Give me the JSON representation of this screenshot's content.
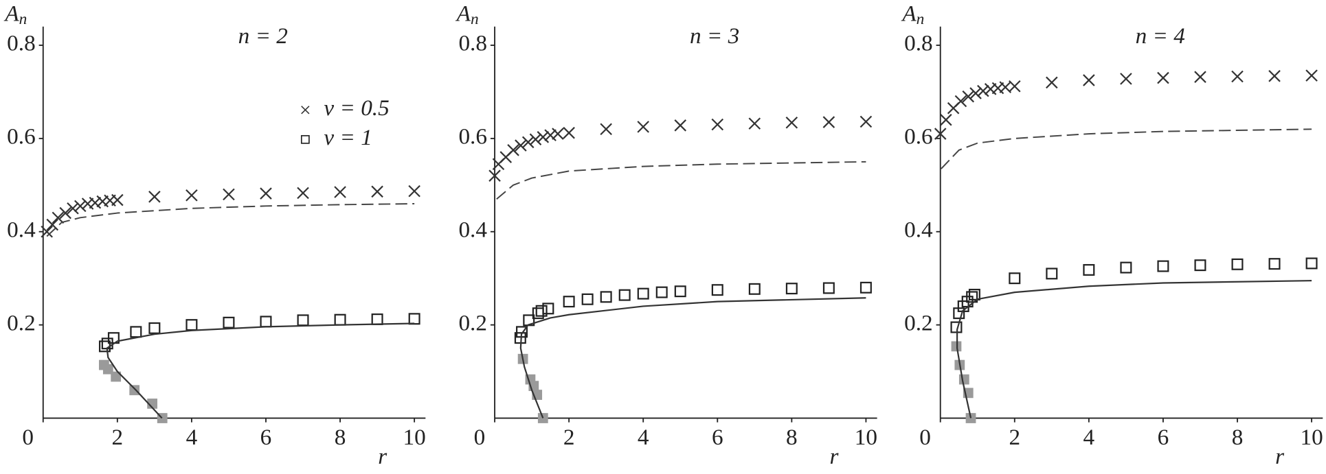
{
  "chart_data": [
    {
      "type": "scatter-line",
      "title": "n = 2",
      "ylabel": "A",
      "ylabel_sub": "n",
      "xlabel": "r",
      "xlim": [
        0,
        10.3
      ],
      "ylim": [
        0,
        0.84
      ],
      "xticks": [
        0,
        2,
        4,
        6,
        8,
        10
      ],
      "yticks": [
        0.2,
        0.4,
        0.6,
        0.8
      ],
      "series": [
        {
          "name": "v = 0.5",
          "marker": "cross",
          "color": "#333333",
          "x": [
            0.1,
            0.25,
            0.4,
            0.6,
            0.8,
            1.0,
            1.2,
            1.4,
            1.6,
            1.8,
            2,
            3,
            4,
            5,
            6,
            7,
            8,
            9,
            10
          ],
          "values": [
            0.4,
            0.415,
            0.43,
            0.44,
            0.45,
            0.455,
            0.46,
            0.462,
            0.465,
            0.467,
            0.468,
            0.475,
            0.478,
            0.48,
            0.482,
            0.483,
            0.485,
            0.486,
            0.487
          ]
        },
        {
          "name": "v = 1",
          "marker": "square",
          "color": "#222222",
          "x": [
            1.66,
            1.73,
            1.9,
            2.5,
            3,
            4,
            5,
            6,
            7,
            8,
            9,
            10
          ],
          "values": [
            0.154,
            0.16,
            0.172,
            0.185,
            0.193,
            0.2,
            0.205,
            0.207,
            0.21,
            0.211,
            0.212,
            0.213
          ]
        },
        {
          "marker": "filled-square",
          "color": "#9a9a9a",
          "x": [
            1.64,
            1.75,
            1.96,
            2.46,
            2.94,
            3.21
          ],
          "values": [
            0.114,
            0.105,
            0.089,
            0.06,
            0.031,
            0.0
          ]
        },
        {
          "marker": "dashed",
          "color": "#444444",
          "x": [
            0.1,
            0.5,
            1,
            2,
            4,
            6,
            8,
            10
          ],
          "values": [
            0.39,
            0.42,
            0.43,
            0.44,
            0.45,
            0.455,
            0.458,
            0.46
          ]
        },
        {
          "marker": "solid",
          "color": "#333333",
          "x": [
            3.2,
            2.5,
            2,
            1.75,
            1.72,
            2,
            3,
            4,
            6,
            8,
            10
          ],
          "values": [
            0.0,
            0.06,
            0.1,
            0.13,
            0.15,
            0.165,
            0.18,
            0.188,
            0.196,
            0.2,
            0.203
          ]
        }
      ]
    },
    {
      "type": "scatter-line",
      "title": "n = 3",
      "ylabel": "A",
      "ylabel_sub": "n",
      "xlabel": "r",
      "xlim": [
        0,
        10.3
      ],
      "ylim": [
        0,
        0.84
      ],
      "xticks": [
        0,
        2,
        4,
        6,
        8,
        10
      ],
      "yticks": [
        0.2,
        0.4,
        0.6,
        0.8
      ],
      "series": [
        {
          "marker": "cross",
          "color": "#333333",
          "x": [
            0,
            0.1,
            0.3,
            0.5,
            0.7,
            0.9,
            1.1,
            1.3,
            1.5,
            1.7,
            2,
            3,
            4,
            5,
            6,
            7,
            8,
            9,
            10
          ],
          "values": [
            0.52,
            0.545,
            0.56,
            0.575,
            0.585,
            0.592,
            0.598,
            0.603,
            0.607,
            0.61,
            0.612,
            0.62,
            0.625,
            0.628,
            0.63,
            0.632,
            0.634,
            0.635,
            0.636
          ]
        },
        {
          "marker": "square",
          "color": "#222222",
          "x": [
            0.69,
            0.73,
            0.92,
            1.17,
            1.26,
            1.44,
            2,
            2.5,
            3,
            3.5,
            4,
            4.5,
            5,
            6,
            7,
            8,
            9,
            10
          ],
          "values": [
            0.172,
            0.185,
            0.21,
            0.225,
            0.23,
            0.235,
            0.25,
            0.255,
            0.26,
            0.264,
            0.267,
            0.27,
            0.272,
            0.275,
            0.277,
            0.278,
            0.279,
            0.28
          ]
        },
        {
          "marker": "filled-square",
          "color": "#9a9a9a",
          "x": [
            0.76,
            0.96,
            1.05,
            1.14,
            1.3
          ],
          "values": [
            0.127,
            0.083,
            0.069,
            0.05,
            0.0
          ]
        },
        {
          "marker": "dashed",
          "color": "#444444",
          "x": [
            0.05,
            0.5,
            1,
            2,
            4,
            6,
            10
          ],
          "values": [
            0.47,
            0.5,
            0.515,
            0.53,
            0.54,
            0.545,
            0.55
          ]
        },
        {
          "marker": "solid",
          "color": "#333333",
          "x": [
            1.3,
            1.0,
            0.8,
            0.7,
            0.72,
            0.9,
            1.5,
            2,
            4,
            6,
            10
          ],
          "values": [
            0.0,
            0.06,
            0.11,
            0.15,
            0.18,
            0.2,
            0.215,
            0.222,
            0.24,
            0.25,
            0.258
          ]
        }
      ]
    },
    {
      "type": "scatter-line",
      "title": "n = 4",
      "ylabel": "A",
      "ylabel_sub": "n",
      "xlabel": "r",
      "xlim": [
        0,
        10.3
      ],
      "ylim": [
        0,
        0.84
      ],
      "xticks": [
        0,
        2,
        4,
        6,
        8,
        10
      ],
      "yticks": [
        0.2,
        0.4,
        0.6,
        0.8
      ],
      "series": [
        {
          "marker": "cross",
          "color": "#333333",
          "x": [
            0,
            0.15,
            0.35,
            0.55,
            0.75,
            0.95,
            1.15,
            1.35,
            1.55,
            1.75,
            2,
            3,
            4,
            5,
            6,
            7,
            8,
            9,
            10
          ],
          "values": [
            0.61,
            0.64,
            0.665,
            0.68,
            0.69,
            0.697,
            0.702,
            0.706,
            0.708,
            0.71,
            0.712,
            0.72,
            0.725,
            0.728,
            0.73,
            0.732,
            0.733,
            0.734,
            0.735
          ]
        },
        {
          "marker": "square",
          "color": "#222222",
          "x": [
            0.43,
            0.5,
            0.62,
            0.73,
            0.85,
            0.92,
            2,
            3,
            4,
            5,
            6,
            7,
            8,
            9,
            10
          ],
          "values": [
            0.195,
            0.225,
            0.24,
            0.25,
            0.26,
            0.265,
            0.3,
            0.31,
            0.318,
            0.323,
            0.326,
            0.328,
            0.33,
            0.331,
            0.332
          ]
        },
        {
          "marker": "filled-square",
          "color": "#9a9a9a",
          "x": [
            0.43,
            0.52,
            0.64,
            0.75,
            0.82
          ],
          "values": [
            0.154,
            0.114,
            0.083,
            0.054,
            0.0
          ]
        },
        {
          "marker": "dashed",
          "color": "#444444",
          "x": [
            0.02,
            0.5,
            1,
            2,
            4,
            6,
            10
          ],
          "values": [
            0.535,
            0.575,
            0.59,
            0.6,
            0.61,
            0.615,
            0.62
          ]
        },
        {
          "marker": "solid",
          "color": "#333333",
          "x": [
            0.82,
            0.6,
            0.45,
            0.45,
            0.6,
            1,
            2,
            4,
            6,
            10
          ],
          "values": [
            0.0,
            0.08,
            0.15,
            0.19,
            0.23,
            0.255,
            0.27,
            0.283,
            0.29,
            0.295
          ]
        }
      ]
    }
  ]
}
